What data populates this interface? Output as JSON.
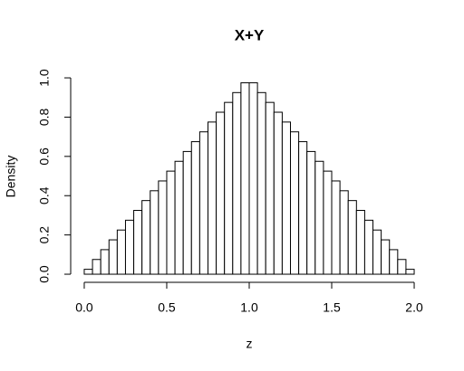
{
  "chart_data": {
    "type": "histogram",
    "title": "X+Y",
    "xlabel": "z",
    "ylabel": "Density",
    "bins": [
      0,
      0.05,
      0.1,
      0.15,
      0.2,
      0.25,
      0.3,
      0.35,
      0.4,
      0.45,
      0.5,
      0.55,
      0.6,
      0.65,
      0.7,
      0.75,
      0.8,
      0.85,
      0.9,
      0.95,
      1.0,
      1.05,
      1.1,
      1.15,
      1.2,
      1.25,
      1.3,
      1.35,
      1.4,
      1.45,
      1.5,
      1.55,
      1.6,
      1.65,
      1.7,
      1.75,
      1.8,
      1.85,
      1.9,
      1.95,
      2.0
    ],
    "values": [
      0.025,
      0.075,
      0.125,
      0.175,
      0.225,
      0.275,
      0.325,
      0.375,
      0.425,
      0.475,
      0.525,
      0.575,
      0.625,
      0.675,
      0.725,
      0.775,
      0.825,
      0.875,
      0.925,
      0.975,
      0.975,
      0.925,
      0.875,
      0.825,
      0.775,
      0.725,
      0.675,
      0.625,
      0.575,
      0.525,
      0.475,
      0.425,
      0.375,
      0.325,
      0.275,
      0.225,
      0.175,
      0.125,
      0.075,
      0.025
    ],
    "color": "#ffffff",
    "xlim": [
      -0.08,
      2.08
    ],
    "ylim": [
      -0.039,
      1.014
    ],
    "xticks": [
      {
        "value": 0,
        "label": "0.0"
      },
      {
        "value": 0.5,
        "label": "0.5"
      },
      {
        "value": 1,
        "label": "1.0"
      },
      {
        "value": 1.5,
        "label": "1.5"
      },
      {
        "value": 2,
        "label": "2.0"
      }
    ],
    "yticks": [
      {
        "value": 0,
        "label": "0.0"
      },
      {
        "value": 0.2,
        "label": "0.2"
      },
      {
        "value": 0.4,
        "label": "0.4"
      },
      {
        "value": 0.6,
        "label": "0.6"
      },
      {
        "value": 0.8,
        "label": "0.8"
      },
      {
        "value": 1,
        "label": "1.0"
      }
    ]
  }
}
